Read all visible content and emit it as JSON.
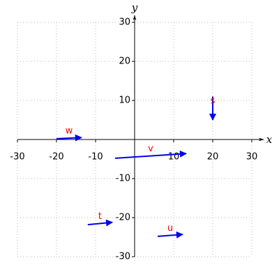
{
  "chart_data": {
    "type": "vector",
    "x_label": "x",
    "y_label": "y",
    "xlim": [
      -30,
      30
    ],
    "ylim": [
      -30,
      30
    ],
    "xticks": [
      -30,
      -20,
      -10,
      10,
      20,
      30
    ],
    "yticks": [
      -30,
      -20,
      -10,
      10,
      20,
      30
    ],
    "grid": true,
    "color": "#0000ee",
    "label_color": "#ff0000",
    "vectors": [
      {
        "name": "s",
        "x0": 20,
        "y0": 11,
        "x1": 20,
        "y1": 5
      },
      {
        "name": "w",
        "x0": -20,
        "y0": 0.2,
        "x1": -13.6,
        "y1": 0.5
      },
      {
        "name": "v",
        "x0": -5,
        "y0": -4.8,
        "x1": 13.2,
        "y1": -3.6
      },
      {
        "name": "t",
        "x0": -12,
        "y0": -21.8,
        "x1": -5.7,
        "y1": -21.2
      },
      {
        "name": "u",
        "x0": 5.9,
        "y0": -24.8,
        "x1": 12.3,
        "y1": -24.3
      }
    ]
  }
}
